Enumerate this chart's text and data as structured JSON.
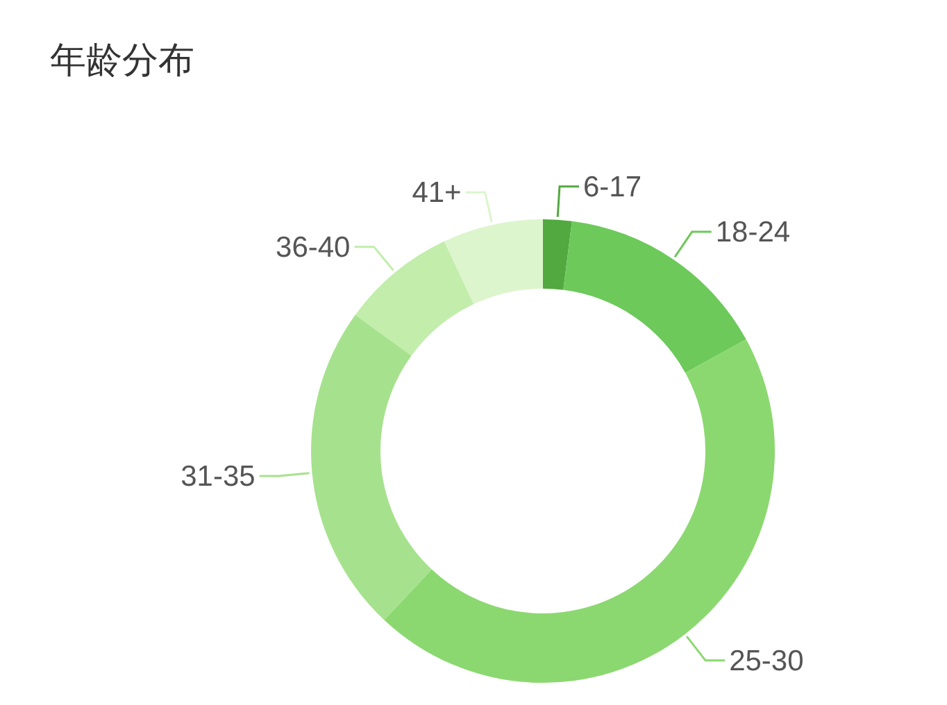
{
  "chart_data": {
    "type": "donut",
    "title": "年龄分布",
    "categories": [
      "6-17",
      "18-24",
      "25-30",
      "31-35",
      "36-40",
      "41+"
    ],
    "values": [
      2,
      15,
      45,
      23,
      8,
      7
    ],
    "colors": [
      "#52a93f",
      "#6cc95a",
      "#8bd870",
      "#a6e28d",
      "#c2edab",
      "#dcf5cd"
    ]
  }
}
